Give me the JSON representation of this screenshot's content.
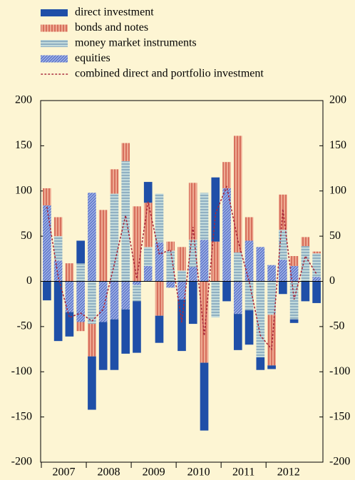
{
  "chart_data": {
    "type": "bar",
    "years": [
      "2007",
      "2008",
      "2009",
      "2010",
      "2011",
      "2012"
    ],
    "ylim": [
      -200,
      200
    ],
    "yticks": [
      -200,
      -150,
      -100,
      -50,
      0,
      50,
      100,
      150,
      200
    ],
    "series": [
      {
        "name": "direct investment",
        "color": "#1f4fa8",
        "hatch": "none",
        "hatch_color": "#1f4fa8",
        "values": [
          -21,
          -66,
          -27,
          25,
          -59,
          -53,
          -56,
          -49,
          -57,
          23,
          -30,
          0,
          -57,
          -47,
          -75,
          71,
          -22,
          -40,
          -38,
          -14,
          -4,
          -14,
          -4,
          -22,
          -24
        ]
      },
      {
        "name": "bonds and notes",
        "color": "#eeaa92",
        "hatch": "vertical",
        "hatch_color": "#c84a3a",
        "values": [
          19,
          21,
          20,
          -10,
          -36,
          79,
          27,
          20,
          83,
          49,
          -38,
          10,
          26,
          63,
          -90,
          44,
          29,
          129,
          26,
          0,
          -56,
          39,
          11,
          10,
          2
        ]
      },
      {
        "name": "money market instruments",
        "color": "#c2dadb",
        "hatch": "horizontal",
        "hatch_color": "#5f86a8",
        "values": [
          0,
          27,
          0,
          20,
          -47,
          0,
          97,
          133,
          -18,
          21,
          54,
          34,
          12,
          30,
          52,
          -40,
          0,
          32,
          -32,
          -84,
          -37,
          33,
          -42,
          39,
          26
        ]
      },
      {
        "name": "equities",
        "color": "#9fb2e6",
        "hatch": "diagonal",
        "hatch_color": "#4a62c0",
        "values": [
          84,
          23,
          -34,
          -45,
          98,
          -45,
          -42,
          -31,
          -4,
          17,
          43,
          -7,
          -20,
          16,
          46,
          0,
          103,
          -36,
          45,
          38,
          18,
          24,
          17,
          0,
          5
        ]
      }
    ],
    "line": {
      "name": "combined direct and portfolio investment",
      "color": "#a8283a",
      "values": [
        82,
        5,
        -40,
        -35,
        -44,
        -31,
        19,
        73,
        3,
        88,
        30,
        35,
        -45,
        60,
        -60,
        75,
        105,
        45,
        0,
        -60,
        -75,
        80,
        -20,
        28,
        8
      ]
    }
  }
}
